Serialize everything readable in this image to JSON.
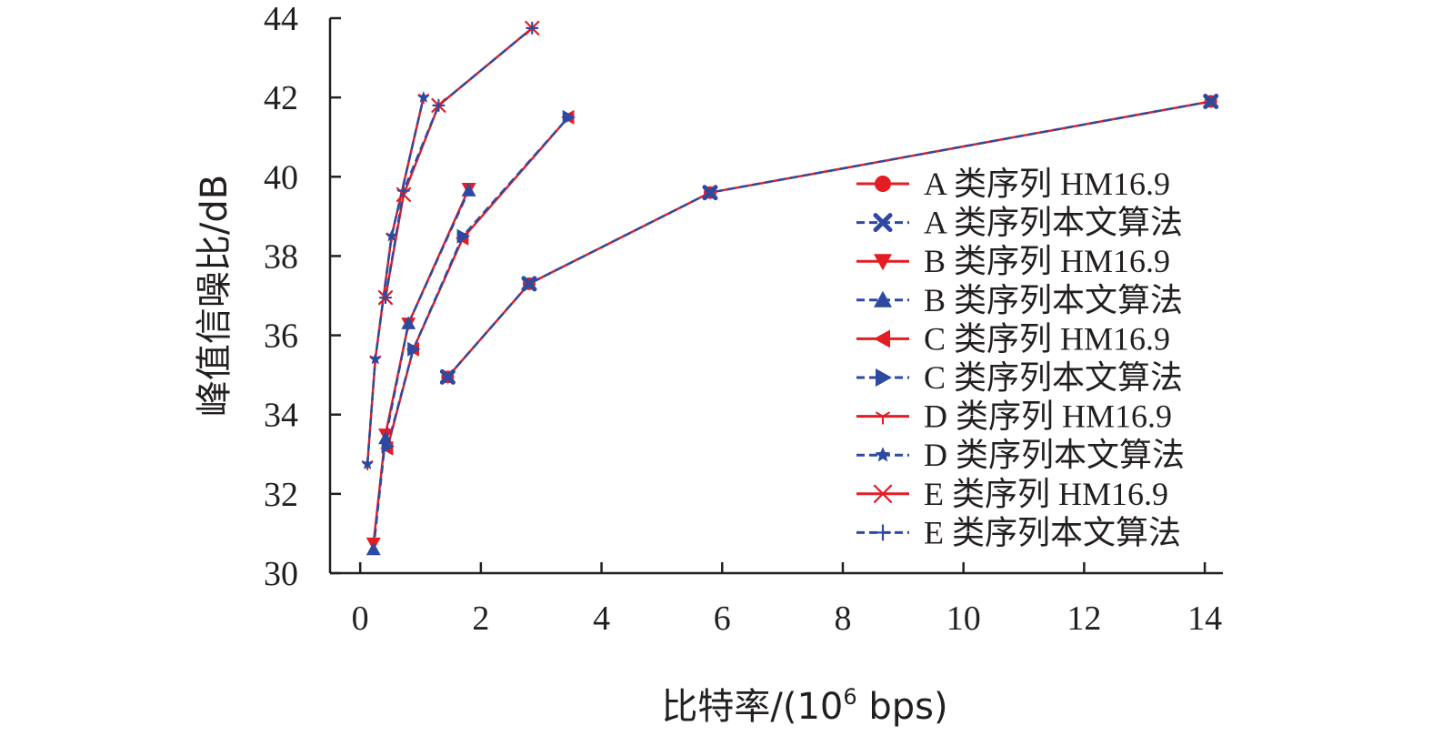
{
  "chart_data": {
    "type": "line",
    "title": "",
    "xlabel_main": "比特率/(10",
    "xlabel_sup": "6",
    "xlabel_tail": " bps)",
    "ylabel": "峰值信噪比/dB",
    "xlim": [
      -0.5,
      14.3
    ],
    "ylim": [
      30,
      44
    ],
    "x_ticks": [
      0,
      2,
      4,
      6,
      8,
      10,
      12,
      14
    ],
    "y_ticks": [
      30,
      32,
      34,
      36,
      38,
      40,
      42,
      44
    ],
    "grid": false,
    "legend_position": "right",
    "colors": {
      "red": "#e31d24",
      "blue": "#2e4aa0",
      "axis": "#231f20"
    },
    "series": [
      {
        "name": "A 类序列 HM16.9",
        "color": "#e31d24",
        "dash": false,
        "marker": "circle",
        "points": [
          [
            1.45,
            34.95
          ],
          [
            2.8,
            37.3
          ],
          [
            5.8,
            39.6
          ],
          [
            14.1,
            41.9
          ]
        ]
      },
      {
        "name": "A 类序列本文算法",
        "color": "#2e4aa0",
        "dash": true,
        "marker": "x-bold",
        "points": [
          [
            1.45,
            34.95
          ],
          [
            2.8,
            37.3
          ],
          [
            5.8,
            39.6
          ],
          [
            14.1,
            41.9
          ]
        ]
      },
      {
        "name": "B 类序列 HM16.9",
        "color": "#e31d24",
        "dash": false,
        "marker": "triangle-down",
        "points": [
          [
            0.22,
            30.75
          ],
          [
            0.42,
            33.5
          ],
          [
            0.8,
            36.3
          ],
          [
            1.8,
            39.7
          ]
        ]
      },
      {
        "name": "B 类序列本文算法",
        "color": "#2e4aa0",
        "dash": true,
        "marker": "triangle-up",
        "points": [
          [
            0.22,
            30.6
          ],
          [
            0.42,
            33.4
          ],
          [
            0.8,
            36.3
          ],
          [
            1.8,
            39.65
          ]
        ]
      },
      {
        "name": "C 类序列 HM16.9",
        "color": "#e31d24",
        "dash": false,
        "marker": "triangle-left",
        "points": [
          [
            0.45,
            33.15
          ],
          [
            0.88,
            35.65
          ],
          [
            1.7,
            38.45
          ],
          [
            3.45,
            41.5
          ]
        ]
      },
      {
        "name": "C 类序列本文算法",
        "color": "#2e4aa0",
        "dash": true,
        "marker": "triangle-right",
        "points": [
          [
            0.45,
            33.2
          ],
          [
            0.88,
            35.65
          ],
          [
            1.7,
            38.5
          ],
          [
            3.45,
            41.5
          ]
        ]
      },
      {
        "name": "D 类序列 HM16.9",
        "color": "#e31d24",
        "dash": false,
        "marker": "tri",
        "points": [
          [
            0.12,
            32.75
          ],
          [
            0.25,
            35.4
          ],
          [
            0.52,
            38.5
          ],
          [
            1.05,
            42.0
          ]
        ]
      },
      {
        "name": "D 类序列本文算法",
        "color": "#2e4aa0",
        "dash": true,
        "marker": "star",
        "points": [
          [
            0.12,
            32.75
          ],
          [
            0.25,
            35.4
          ],
          [
            0.52,
            38.5
          ],
          [
            1.05,
            42.0
          ]
        ]
      },
      {
        "name": "E 类序列 HM16.9",
        "color": "#e31d24",
        "dash": false,
        "marker": "x",
        "points": [
          [
            0.42,
            36.95
          ],
          [
            0.72,
            39.55
          ],
          [
            1.3,
            41.8
          ],
          [
            2.85,
            43.75
          ]
        ]
      },
      {
        "name": "E 类序列本文算法",
        "color": "#2e4aa0",
        "dash": true,
        "marker": "plus",
        "points": [
          [
            0.42,
            36.95
          ],
          [
            0.72,
            39.65
          ],
          [
            1.3,
            41.8
          ],
          [
            2.85,
            43.75
          ]
        ]
      }
    ]
  }
}
